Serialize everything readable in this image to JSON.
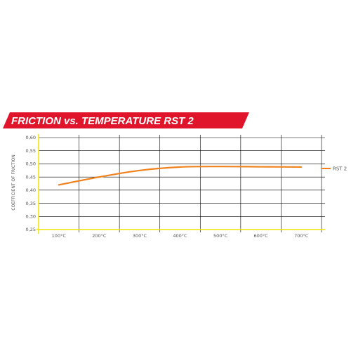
{
  "banner": {
    "title": "FRICTION vs. TEMPERATURE RST  2",
    "color": "#e0142b"
  },
  "chart_data": {
    "type": "line",
    "title": "FRICTION vs. TEMPERATURE RST  2",
    "xlabel": "",
    "ylabel": "COEFFICIENT OF FRICTION",
    "categories": [
      "100°C",
      "200°C",
      "300°C",
      "400°C",
      "500°C",
      "600°C",
      "700°C"
    ],
    "y_ticks": [
      "0,60",
      "0,55",
      "0,50",
      "0,45",
      "0,40",
      "0,35",
      "0,30",
      "0,25"
    ],
    "ylim": [
      0.25,
      0.6
    ],
    "grid": true,
    "legend_position": "right",
    "series": [
      {
        "name": "RST 2",
        "color": "#f0821e",
        "x": [
          100,
          200,
          300,
          400,
          500,
          600,
          700
        ],
        "values": [
          0.42,
          0.45,
          0.475,
          0.488,
          0.49,
          0.489,
          0.488
        ]
      }
    ],
    "colors": {
      "axis": "#f2e400",
      "grid": "#000000"
    }
  }
}
